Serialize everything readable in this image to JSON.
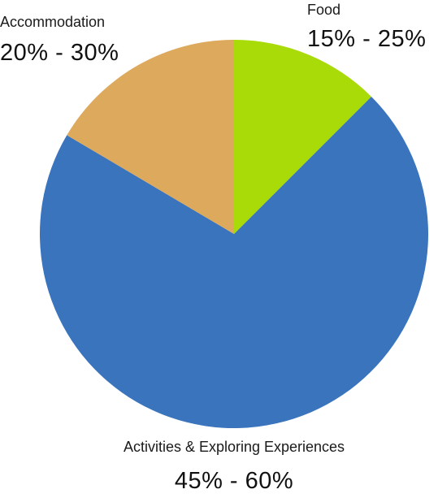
{
  "chart_data": {
    "type": "pie",
    "start_angle_deg": 0,
    "direction": "clockwise",
    "slices": [
      {
        "name": "Food",
        "value": 12.5,
        "range_label": "15% - 25%",
        "color": "#a8db07"
      },
      {
        "name": "Activities & Exploring Experiences",
        "value": 71.0,
        "range_label": "45% - 60%",
        "color": "#3a74bd"
      },
      {
        "name": "Accommodation",
        "value": 16.5,
        "range_label": "20% - 30%",
        "color": "#dca95d"
      }
    ]
  }
}
